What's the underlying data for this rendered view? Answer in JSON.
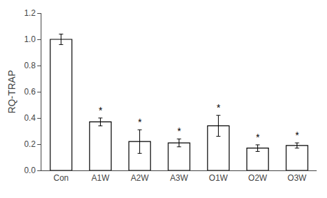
{
  "chart_data": {
    "type": "bar",
    "categories": [
      "Con",
      "A1W",
      "A2W",
      "A3W",
      "O1W",
      "O2W",
      "O3W"
    ],
    "values": [
      1.0,
      0.37,
      0.22,
      0.21,
      0.34,
      0.17,
      0.19
    ],
    "errors": [
      0.04,
      0.03,
      0.09,
      0.03,
      0.08,
      0.025,
      0.02
    ],
    "color": "#ffffff",
    "ylabel": "RQ-TRAP",
    "ylim": [
      0.0,
      1.2
    ],
    "yticks": [
      {
        "value": 0.0,
        "label": "0.0"
      },
      0.2,
      0.4,
      0.6,
      0.8,
      {
        "value": 1.0,
        "label": "1.0"
      },
      1.2
    ],
    "grid": false,
    "annotations": [
      {
        "x": "A1W",
        "text": "*"
      },
      {
        "x": "A2W",
        "text": "*"
      },
      {
        "x": "A3W",
        "text": "*"
      },
      {
        "x": "O1W",
        "text": "*"
      },
      {
        "x": "O2W",
        "text": "*"
      },
      {
        "x": "O3W",
        "text": "*"
      }
    ]
  }
}
